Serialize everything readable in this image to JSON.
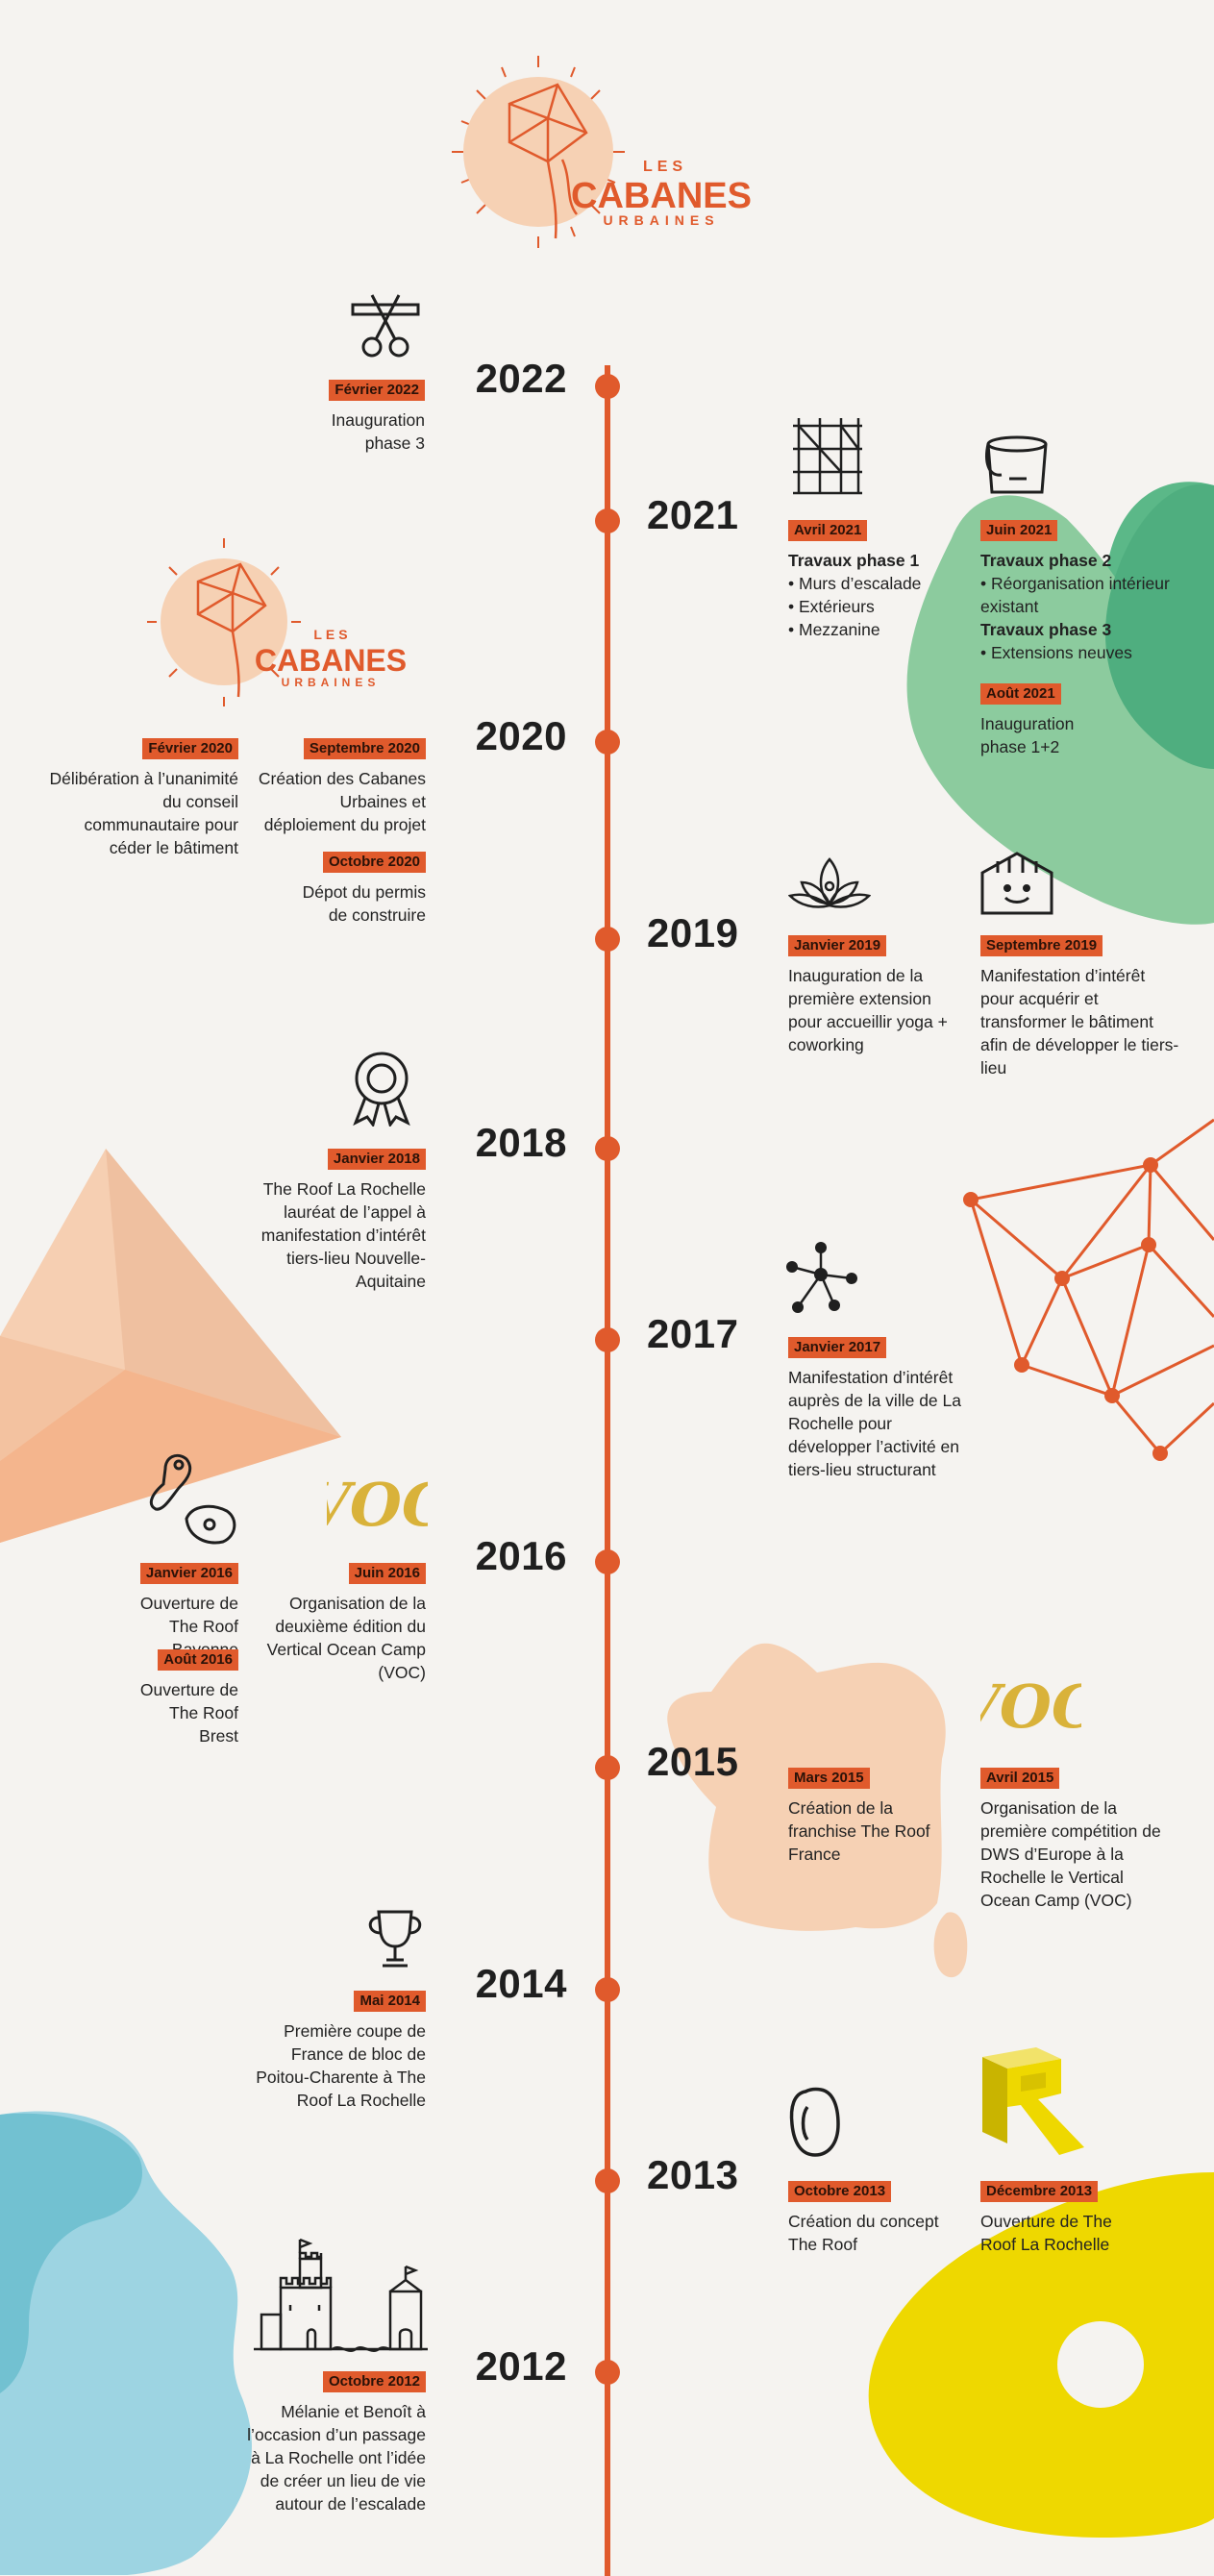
{
  "brand": {
    "logo_small": "LES",
    "logo_main": "CABANES",
    "logo_sub": "URBAINES"
  },
  "timeline": {
    "y2022": {
      "year": "2022",
      "e1": {
        "date": "Février 2022",
        "text": "Inauguration phase 3",
        "icon": "scissors-ribbon-icon"
      }
    },
    "y2021": {
      "year": "2021",
      "e1": {
        "date": "Avril 2021",
        "title": "Travaux phase 1",
        "items": [
          "• Murs d’escalade",
          "• Extérieurs",
          "• Mezzanine"
        ],
        "icon": "scaffolding-icon"
      },
      "e2": {
        "date": "Juin 2021",
        "title1": "Travaux phase 2",
        "item1": "• Réorganisation intérieur existant",
        "title2": "Travaux phase 3",
        "item2": "• Extensions neuves",
        "icon": "paint-bucket-icon"
      },
      "e3": {
        "date": "Août 2021",
        "text": "Inauguration phase 1+2"
      }
    },
    "y2020": {
      "year": "2020",
      "e1": {
        "date": "Février 2020",
        "text": "Délibération à l’unanimité du conseil communautaire pour céder le bâtiment"
      },
      "e2": {
        "date": "Septembre 2020",
        "text": "Création des Cabanes Urbaines et déploiement du projet"
      },
      "e3": {
        "date": "Octobre 2020",
        "text": "Dépot du permis de construire"
      }
    },
    "y2019": {
      "year": "2019",
      "e1": {
        "date": "Janvier 2019",
        "text": "Inauguration de la première extension pour accueillir yoga + coworking",
        "icon": "lotus-icon"
      },
      "e2": {
        "date": "Septembre 2019",
        "text": "Manifestation d’intérêt pour acquérir et transformer le bâtiment afin de développer le tiers-lieu",
        "icon": "smiling-building-icon"
      }
    },
    "y2018": {
      "year": "2018",
      "e1": {
        "date": "Janvier 2018",
        "text": "The Roof La Rochelle lauréat de l’appel à manifestation d’intérêt tiers-lieu Nouvelle-Aquitaine",
        "icon": "award-rosette-icon"
      }
    },
    "y2017": {
      "year": "2017",
      "e1": {
        "date": "Janvier 2017",
        "text": "Manifestation d’intérêt auprès de la ville de La Rochelle pour développer l’activité en tiers-lieu structurant",
        "icon": "network-node-icon"
      }
    },
    "y2016": {
      "year": "2016",
      "e1": {
        "date": "Janvier 2016",
        "text": "Ouverture de The Roof Bayonne",
        "icon": "climbing-holds-icon"
      },
      "e2": {
        "date": "Août 2016",
        "text": "Ouverture de The Roof Brest"
      },
      "e3": {
        "date": "Juin 2016",
        "text": "Organisation de la deuxième édition du Vertical Ocean Camp (VOC)",
        "logo": "VOC"
      }
    },
    "y2015": {
      "year": "2015",
      "e1": {
        "date": "Mars 2015",
        "text": "Création de la franchise The Roof France",
        "icon": "france-map-icon"
      },
      "e2": {
        "date": "Avril 2015",
        "text": "Organisation de la première compétition de DWS d’Europe à la Rochelle le Vertical Ocean Camp (VOC)",
        "logo": "VOC"
      }
    },
    "y2014": {
      "year": "2014",
      "e1": {
        "date": "Mai 2014",
        "text": "Première coupe de France de bloc de Poitou-Charente à The Roof La Rochelle",
        "icon": "trophy-icon"
      }
    },
    "y2013": {
      "year": "2013",
      "e1": {
        "date": "Octobre 2013",
        "text": "Création du concept The Roof",
        "icon": "carabiner-icon"
      },
      "e2": {
        "date": "Décembre 2013",
        "text": "Ouverture de The Roof La Rochelle",
        "icon": "the-roof-logo-icon"
      }
    },
    "y2012": {
      "year": "2012",
      "e1": {
        "date": "Octobre 2012",
        "text": "Mélanie et Benoît à l’occasion d’un passage à La Rochelle ont l’idée de créer un lieu de vie autour de l’escalade",
        "icon": "la-rochelle-towers-icon"
      }
    }
  },
  "colors": {
    "accent": "#e05a2c",
    "background": "#f5f3f0",
    "peach": "#f6d1b4",
    "green": "#5bb888",
    "blue": "#8ccfdf",
    "yellow": "#eed800",
    "gold": "#d9b23a"
  }
}
